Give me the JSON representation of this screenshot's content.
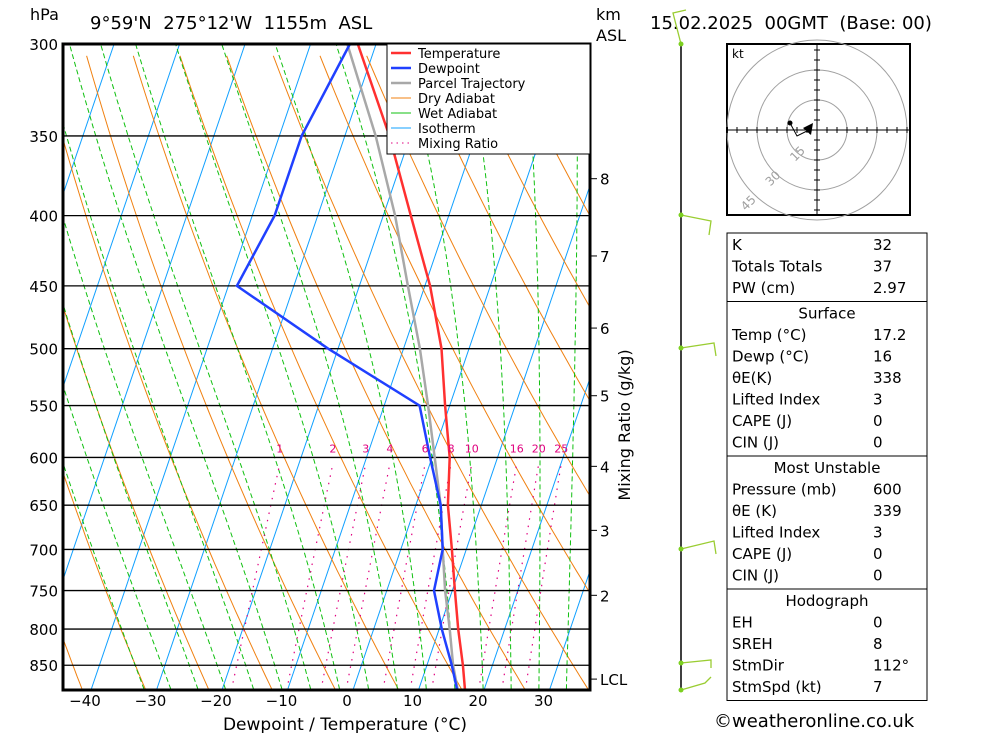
{
  "header": {
    "pressure_unit": "hPa",
    "location": "9°59'N  275°12'W  1155m  ASL",
    "km_unit_line1": "km",
    "km_unit_line2": "ASL",
    "datetime": "15.02.2025  00GMT  (Base: 00)"
  },
  "chart_data": {
    "type": "line",
    "title": "9°59'N 275°12'W 1155m ASL",
    "xlabel": "Dewpoint / Temperature (°C)",
    "ylabel": "hPa",
    "secondary_ylabel": "Mixing Ratio (g/kg)",
    "xlim": [
      -43,
      37
    ],
    "ylim": [
      886,
      300
    ],
    "x_ticks": [
      -40,
      -30,
      -20,
      -10,
      0,
      10,
      20,
      30
    ],
    "pressure_ticks": [
      300,
      350,
      400,
      450,
      500,
      550,
      600,
      650,
      700,
      750,
      800,
      850
    ],
    "km_ticks": [
      {
        "label": "8",
        "p": 376
      },
      {
        "label": "7",
        "p": 428
      },
      {
        "label": "6",
        "p": 483
      },
      {
        "label": "5",
        "p": 541
      },
      {
        "label": "4",
        "p": 609
      },
      {
        "label": "3",
        "p": 678
      },
      {
        "label": "2",
        "p": 756
      },
      {
        "label": "LCL",
        "p": 870
      }
    ],
    "mixing_ratio_labels": [
      1,
      2,
      3,
      4,
      6,
      8,
      10,
      16,
      20,
      25
    ],
    "legend": {
      "placement": "top-right",
      "entries": [
        {
          "name": "Temperature",
          "color": "#ff3030",
          "style": "thick"
        },
        {
          "name": "Dewpoint",
          "color": "#2040ff",
          "style": "thick"
        },
        {
          "name": "Parcel Trajectory",
          "color": "#a8a8a8",
          "style": "thick"
        },
        {
          "name": "Dry Adiabat",
          "color": "#f08010",
          "style": "thin"
        },
        {
          "name": "Wet Adiabat",
          "color": "#10c010",
          "style": "thin"
        },
        {
          "name": "Isotherm",
          "color": "#10a0ff",
          "style": "thin"
        },
        {
          "name": "Mixing Ratio",
          "color": "#e0007f",
          "style": "dotted"
        }
      ]
    },
    "pressure": [
      886,
      850,
      800,
      750,
      700,
      650,
      600,
      550,
      500,
      450,
      400,
      350,
      300
    ],
    "series": [
      {
        "name": "Temperature",
        "values": [
          17.1,
          15.5,
          12.9,
          10.4,
          7.8,
          4.9,
          2.7,
          -0.7,
          -4.2,
          -9.2,
          -15.8,
          -23.2,
          -32.8
        ]
      },
      {
        "name": "Dewpoint",
        "values": [
          15.9,
          13.8,
          10.4,
          7.2,
          6.4,
          3.8,
          -0.3,
          -4.6,
          -21.5,
          -38.7,
          -36.6,
          -36.6,
          -34.0
        ]
      },
      {
        "name": "Parcel Trajectory",
        "values": [
          16.0,
          14.0,
          11.6,
          8.9,
          6.4,
          3.8,
          0.4,
          -3.3,
          -7.5,
          -12.6,
          -18.2,
          -25.3,
          -34.4
        ]
      }
    ],
    "wind_barb_levels": [
      886,
      850,
      700,
      500,
      400,
      300
    ]
  },
  "hodograph": {
    "unit": "kt",
    "rings": [
      "15",
      "30",
      "45"
    ]
  },
  "indices": {
    "rows": [
      {
        "label": "K",
        "value": "32"
      },
      {
        "label": "Totals Totals",
        "value": "37"
      },
      {
        "label": "PW (cm)",
        "value": "2.97"
      }
    ]
  },
  "surface": {
    "title": "Surface",
    "rows": [
      {
        "label": "Temp (°C)",
        "value": "17.2"
      },
      {
        "label": "Dewp (°C)",
        "value": "16"
      },
      {
        "label": "θE(K)",
        "value": "338"
      },
      {
        "label": "Lifted Index",
        "value": "3"
      },
      {
        "label": "CAPE (J)",
        "value": "0"
      },
      {
        "label": "CIN (J)",
        "value": "0"
      }
    ]
  },
  "most_unstable": {
    "title": "Most Unstable",
    "rows": [
      {
        "label": "Pressure (mb)",
        "value": "600"
      },
      {
        "label": "θE (K)",
        "value": "339"
      },
      {
        "label": "Lifted Index",
        "value": "3"
      },
      {
        "label": "CAPE (J)",
        "value": "0"
      },
      {
        "label": "CIN (J)",
        "value": "0"
      }
    ]
  },
  "hodo_table": {
    "title": "Hodograph",
    "rows": [
      {
        "label": "EH",
        "value": "0"
      },
      {
        "label": "SREH",
        "value": "8"
      },
      {
        "label": "StmDir",
        "value": "112°"
      },
      {
        "label": "StmSpd (kt)",
        "value": "7"
      }
    ]
  },
  "footer": {
    "copyright": "©weatheronline.co.uk"
  }
}
